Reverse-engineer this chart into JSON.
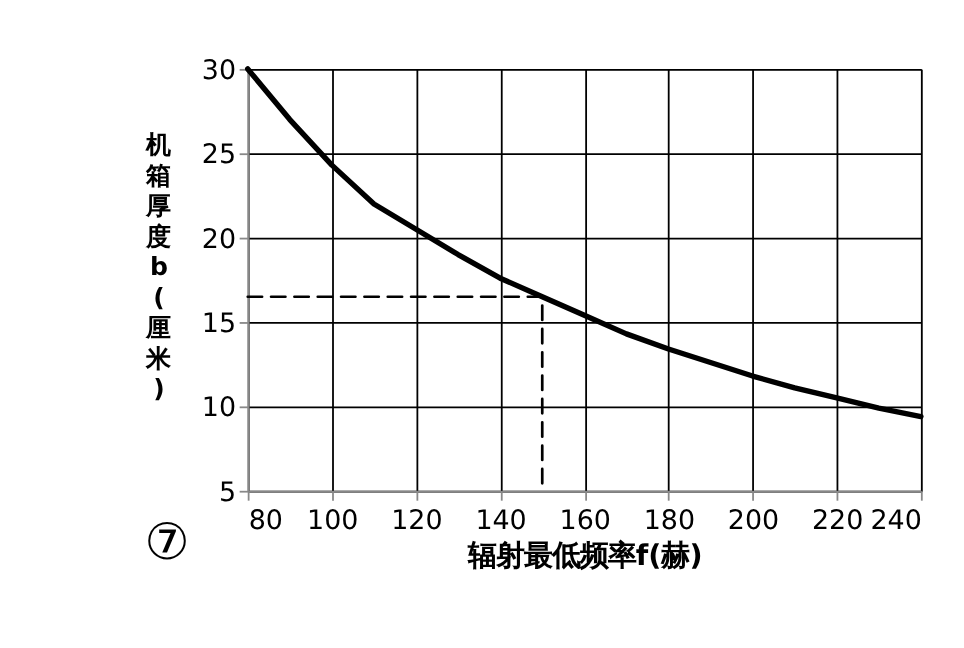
{
  "chart_data": {
    "type": "line",
    "xlabel": "辐射最低频率f(赫)",
    "ylabel": "机箱厚度b(厘米)",
    "annotations": [
      "⑦"
    ],
    "xlim": [
      80,
      240
    ],
    "ylim": [
      5,
      30
    ],
    "xticks": [
      80,
      100,
      120,
      140,
      160,
      180,
      200,
      220,
      240
    ],
    "yticks": [
      5,
      10,
      15,
      20,
      25,
      30
    ],
    "grid": true,
    "series": [
      {
        "color": "#000000",
        "x": [
          80,
          90,
          100,
          110,
          120,
          130,
          140,
          150,
          160,
          170,
          180,
          190,
          200,
          210,
          220,
          230,
          240
        ],
        "values": [
          30,
          27,
          24.3,
          22,
          20.5,
          19,
          17.6,
          16.5,
          15.4,
          14.3,
          13.4,
          12.6,
          11.8,
          11.1,
          10.5,
          9.9,
          9.4
        ],
        "line_style": "solid"
      },
      {
        "color": "#000000",
        "x": [
          80,
          150,
          150
        ],
        "values": [
          16.5,
          16.5,
          5
        ],
        "line_style": "dashed"
      }
    ]
  }
}
